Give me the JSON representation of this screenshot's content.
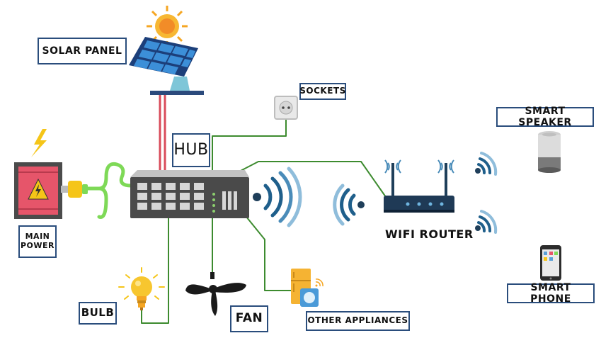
{
  "labels": {
    "solar_panel": "SOLAR PANEL",
    "sockets": "SOCKETS",
    "hub": "HUB",
    "smart_speaker": "SMART SPEAKER",
    "main_power": "MAIN POWER",
    "wifi_router": "WIFI ROUTER",
    "smart_phone": "SMART PHONE",
    "bulb": "BULB",
    "fan": "FAN",
    "other_appliances": "OTHER APPLIANCES"
  },
  "colors": {
    "wire_green": "#7ed957",
    "wire_dark_green": "#3d8b2f",
    "wire_red": "#d94b5a",
    "box_border": "#2a4d7c",
    "hub_body": "#4a4a4a",
    "wifi_wave": "#1f5f8b"
  },
  "icons": [
    "sun-icon",
    "solar-panel-icon",
    "socket-icon",
    "lightning-icon",
    "power-box-icon",
    "plug-icon",
    "hub-icon",
    "wifi-waves-icon",
    "router-icon",
    "speaker-icon",
    "phone-icon",
    "bulb-icon",
    "fan-icon",
    "appliances-icon"
  ]
}
